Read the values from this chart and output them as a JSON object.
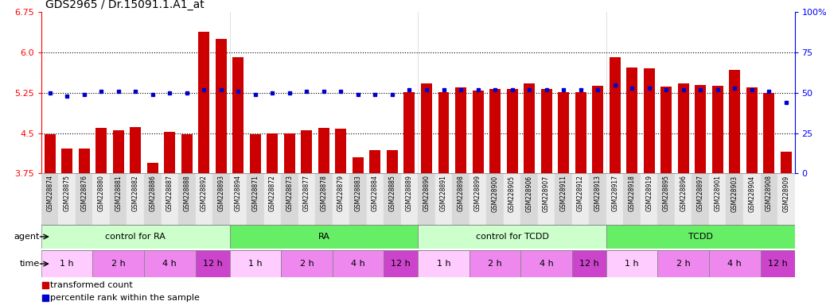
{
  "title": "GDS2965 / Dr.15091.1.A1_at",
  "samples": [
    "GSM228874",
    "GSM228875",
    "GSM228876",
    "GSM228880",
    "GSM228881",
    "GSM228882",
    "GSM228886",
    "GSM228887",
    "GSM228888",
    "GSM228892",
    "GSM228893",
    "GSM228894",
    "GSM228871",
    "GSM228872",
    "GSM228873",
    "GSM228877",
    "GSM228878",
    "GSM228879",
    "GSM228883",
    "GSM228884",
    "GSM228885",
    "GSM228889",
    "GSM228890",
    "GSM228891",
    "GSM228898",
    "GSM228899",
    "GSM228900",
    "GSM228905",
    "GSM228906",
    "GSM228907",
    "GSM228911",
    "GSM228912",
    "GSM228913",
    "GSM228917",
    "GSM228918",
    "GSM228919",
    "GSM228895",
    "GSM228896",
    "GSM228897",
    "GSM228901",
    "GSM228903",
    "GSM228904",
    "GSM228908",
    "GSM228909"
  ],
  "bar_values": [
    4.48,
    4.22,
    4.22,
    4.6,
    4.55,
    4.62,
    3.95,
    4.53,
    4.48,
    6.38,
    6.25,
    5.92,
    4.48,
    4.5,
    4.5,
    4.55,
    4.6,
    4.58,
    4.05,
    4.18,
    4.18,
    5.27,
    5.42,
    5.27,
    5.35,
    5.3,
    5.32,
    5.32,
    5.42,
    5.33,
    5.27,
    5.27,
    5.38,
    5.92,
    5.72,
    5.7,
    5.37,
    5.42,
    5.4,
    5.38,
    5.68,
    5.35,
    5.25,
    4.15
  ],
  "percentile_values": [
    50,
    48,
    49,
    51,
    51,
    51,
    49,
    50,
    50,
    52,
    52,
    51,
    49,
    50,
    50,
    51,
    51,
    51,
    49,
    49,
    49,
    52,
    52,
    52,
    52,
    52,
    52,
    52,
    52,
    52,
    52,
    52,
    52,
    55,
    53,
    53,
    52,
    52,
    52,
    52,
    53,
    52,
    51,
    44
  ],
  "ymin": 3.75,
  "ymax": 6.75,
  "yticks_left": [
    3.75,
    4.5,
    5.25,
    6.0,
    6.75
  ],
  "yticks_right_pct": [
    0,
    25,
    50,
    75,
    100
  ],
  "yticks_right_labels": [
    "0",
    "25",
    "50",
    "75",
    "100%"
  ],
  "bar_color": "#cc0000",
  "marker_color": "#0000cc",
  "dotted_lines": [
    4.5,
    5.25,
    6.0
  ],
  "agent_groups": [
    {
      "label": "control for RA",
      "start": 0,
      "end": 11,
      "color": "#ccffcc"
    },
    {
      "label": "RA",
      "start": 11,
      "end": 22,
      "color": "#66ee66"
    },
    {
      "label": "control for TCDD",
      "start": 22,
      "end": 33,
      "color": "#ccffcc"
    },
    {
      "label": "TCDD",
      "start": 33,
      "end": 44,
      "color": "#66ee66"
    }
  ],
  "time_subgroups": [
    {
      "label": "1 h",
      "start": 0,
      "end": 3,
      "color": "#ffccff"
    },
    {
      "label": "2 h",
      "start": 3,
      "end": 6,
      "color": "#ee88ee"
    },
    {
      "label": "4 h",
      "start": 6,
      "end": 9,
      "color": "#ee88ee"
    },
    {
      "label": "12 h",
      "start": 9,
      "end": 11,
      "color": "#cc44cc"
    },
    {
      "label": "1 h",
      "start": 11,
      "end": 14,
      "color": "#ffccff"
    },
    {
      "label": "2 h",
      "start": 14,
      "end": 17,
      "color": "#ee88ee"
    },
    {
      "label": "4 h",
      "start": 17,
      "end": 20,
      "color": "#ee88ee"
    },
    {
      "label": "12 h",
      "start": 20,
      "end": 22,
      "color": "#cc44cc"
    },
    {
      "label": "1 h",
      "start": 22,
      "end": 25,
      "color": "#ffccff"
    },
    {
      "label": "2 h",
      "start": 25,
      "end": 28,
      "color": "#ee88ee"
    },
    {
      "label": "4 h",
      "start": 28,
      "end": 31,
      "color": "#ee88ee"
    },
    {
      "label": "12 h",
      "start": 31,
      "end": 33,
      "color": "#cc44cc"
    },
    {
      "label": "1 h",
      "start": 33,
      "end": 36,
      "color": "#ffccff"
    },
    {
      "label": "2 h",
      "start": 36,
      "end": 39,
      "color": "#ee88ee"
    },
    {
      "label": "4 h",
      "start": 39,
      "end": 42,
      "color": "#ee88ee"
    },
    {
      "label": "12 h",
      "start": 42,
      "end": 44,
      "color": "#cc44cc"
    }
  ],
  "n_samples": 44,
  "title_fontsize": 10,
  "tick_fontsize": 5.5,
  "label_fontsize": 8,
  "row_fontsize": 8
}
